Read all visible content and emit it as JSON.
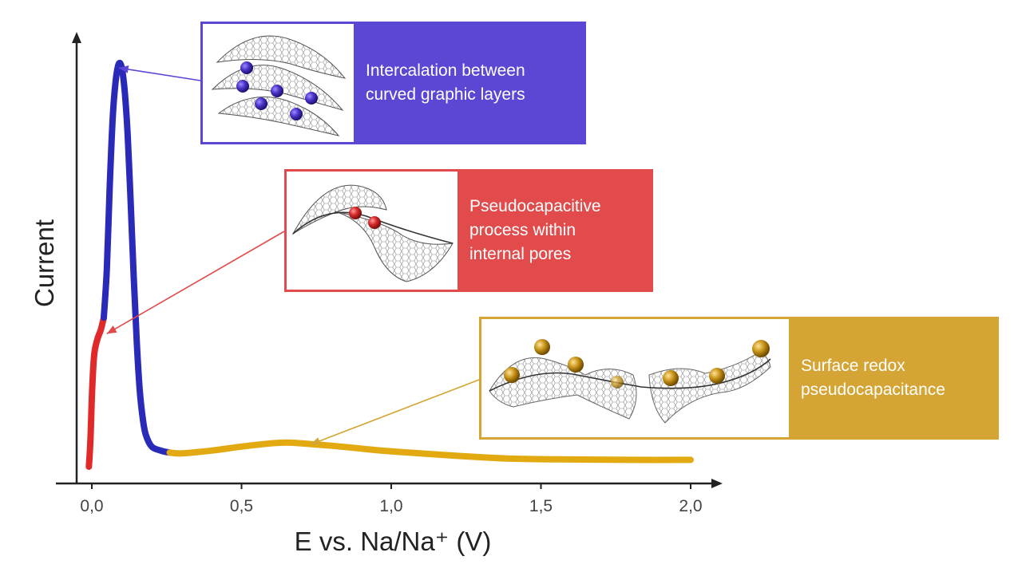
{
  "chart_data": {
    "type": "line",
    "xlabel": "E vs. Na/Na⁺ (V)",
    "ylabel": "Current",
    "xlim": [
      -0.13,
      2.1
    ],
    "ylim": [
      0,
      1
    ],
    "x_ticks": [
      "0,0",
      "0,5",
      "1,0",
      "1,5",
      "2,0"
    ],
    "x_tick_values": [
      0.0,
      0.5,
      1.0,
      1.5,
      2.0
    ],
    "grid": false,
    "series": [
      {
        "color": "#e02a2a",
        "x": [
          -0.01,
          -0.005,
          0.0,
          0.005,
          0.01,
          0.02,
          0.03,
          0.04
        ],
        "y": [
          0.0,
          0.06,
          0.17,
          0.25,
          0.29,
          0.32,
          0.34,
          0.37
        ]
      },
      {
        "color": "#2a2ab8",
        "x": [
          0.04,
          0.05,
          0.06,
          0.07,
          0.08,
          0.09,
          0.1,
          0.11,
          0.12,
          0.13,
          0.14,
          0.15,
          0.16,
          0.17,
          0.18,
          0.2,
          0.23,
          0.26
        ],
        "y": [
          0.37,
          0.49,
          0.7,
          0.87,
          0.96,
          1.0,
          0.99,
          0.93,
          0.82,
          0.65,
          0.47,
          0.31,
          0.19,
          0.12,
          0.08,
          0.05,
          0.04,
          0.035
        ]
      },
      {
        "color": "#e2a910",
        "x": [
          0.26,
          0.3,
          0.4,
          0.5,
          0.6,
          0.65,
          0.7,
          0.8,
          0.9,
          1.0,
          1.2,
          1.4,
          1.6,
          1.8,
          2.0
        ],
        "y": [
          0.035,
          0.033,
          0.04,
          0.05,
          0.058,
          0.06,
          0.058,
          0.052,
          0.045,
          0.038,
          0.028,
          0.02,
          0.018,
          0.017,
          0.017
        ]
      }
    ],
    "annotations": [
      {
        "text": "Intercalation between\ncurved graphic layers",
        "color": "#5a48d4",
        "points_to": {
          "x": 0.09,
          "y": 0.99
        }
      },
      {
        "text": "Pseudocapacitive\nprocess within\ninternal pores",
        "color": "#e24b4b",
        "points_to": {
          "x": 0.05,
          "y": 0.33
        }
      },
      {
        "text": "Surface redox\npseudocapacitance",
        "color": "#d4a534",
        "points_to": {
          "x": 0.73,
          "y": 0.055
        }
      }
    ]
  }
}
